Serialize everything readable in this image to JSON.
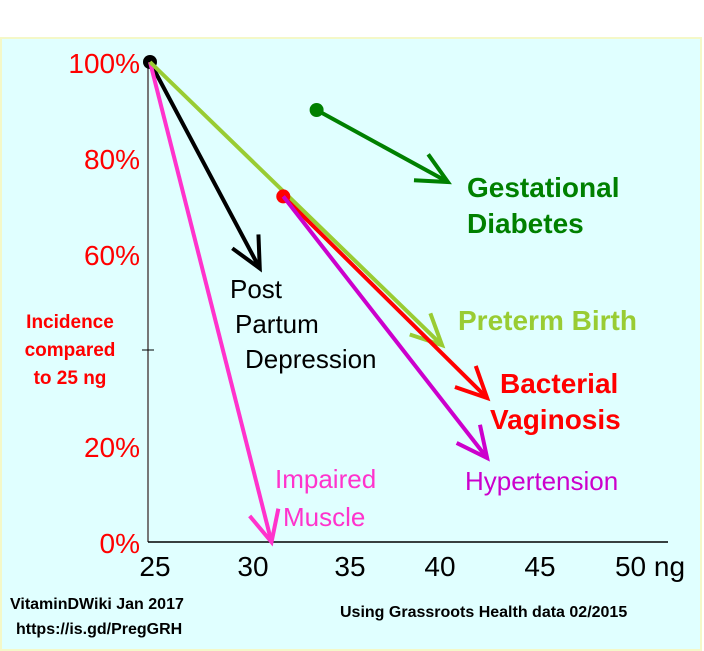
{
  "chart_data": {
    "type": "line",
    "ylabel": [
      "Incidence",
      "compared",
      "to 25 ng"
    ],
    "xlim": [
      25,
      50
    ],
    "ylim": [
      0,
      100
    ],
    "xticks": [
      "25",
      "30",
      "35",
      "40",
      "45",
      "50 ng"
    ],
    "yticks": [
      {
        "v": 100,
        "label": "100%"
      },
      {
        "v": 80,
        "label": "80%"
      },
      {
        "v": 60,
        "label": "60%"
      },
      {
        "v": 40,
        "label": ""
      },
      {
        "v": 20,
        "label": "20%"
      },
      {
        "v": 0,
        "label": "0%"
      }
    ],
    "series": [
      {
        "name": "Post Partum Depression",
        "lines": [
          "Post",
          "Partum",
          "Depression"
        ],
        "color": "#000000",
        "start": [
          25,
          100
        ],
        "end": [
          30.6,
          57
        ],
        "dot": true
      },
      {
        "name": "Impaired Muscle",
        "lines": [
          "Impaired",
          "Muscle"
        ],
        "color": "#ff33cc",
        "start": [
          25,
          100
        ],
        "end": [
          31.2,
          0
        ],
        "dot": false
      },
      {
        "name": "Preterm Birth",
        "lines": [
          "Preterm Birth"
        ],
        "color": "#99cc33",
        "start": [
          25,
          100
        ],
        "end": [
          39.9,
          41
        ],
        "dot": false
      },
      {
        "name": "Bacterial Vaginosis",
        "lines": [
          "Bacterial",
          "Vaginosis"
        ],
        "color": "#ff0000",
        "start": [
          31.8,
          72
        ],
        "end": [
          42.2,
          30
        ],
        "dot": true
      },
      {
        "name": "Hypertension",
        "lines": [
          "Hypertension"
        ],
        "color": "#cc00cc",
        "start": [
          31.8,
          72
        ],
        "end": [
          42.2,
          17.5
        ],
        "dot": false
      },
      {
        "name": "Gestational Diabetes",
        "lines": [
          "Gestational",
          "Diabetes"
        ],
        "color": "#008000",
        "start": [
          33.5,
          90
        ],
        "end": [
          40.2,
          75
        ],
        "dot": true
      }
    ]
  },
  "footer": {
    "left1": "VitaminDWiki Jan 2017",
    "left2": "https://is.gd/PregGRH",
    "right": "Using Grassroots Health data 02/2015"
  }
}
